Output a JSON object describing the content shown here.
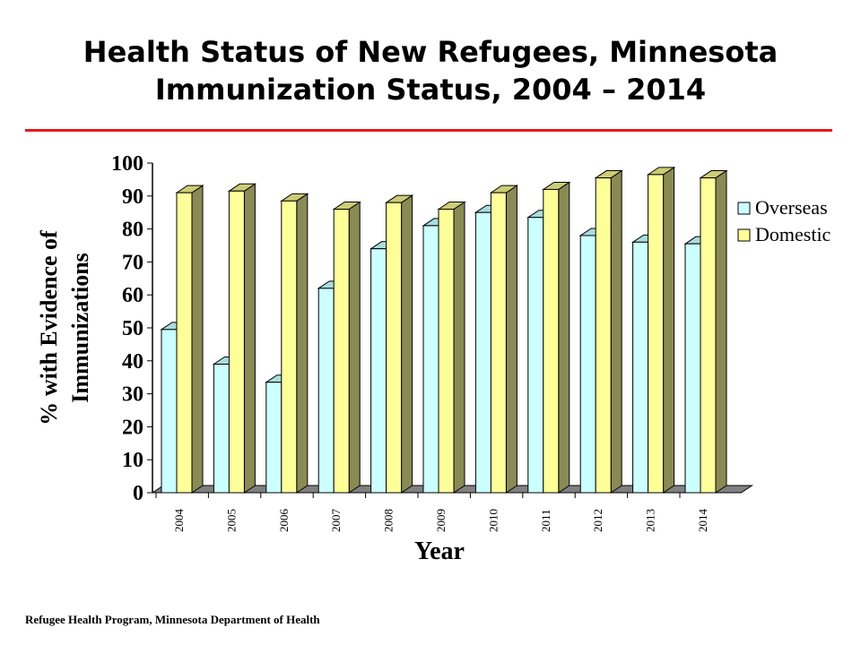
{
  "title_line1": "Health Status of New Refugees, Minnesota",
  "title_line2": "Immunization Status, 2004 – 2014",
  "footer": "Refugee Health Program, Minnesota Department of Health",
  "chart_data": {
    "type": "bar",
    "categories": [
      "2004",
      "2005",
      "2006",
      "2007",
      "2008",
      "2009",
      "2010",
      "2011",
      "2012",
      "2013",
      "2014"
    ],
    "series": [
      {
        "name": "Overseas",
        "values": [
          49.5,
          39,
          33.5,
          62,
          74,
          81,
          85,
          83.5,
          78,
          76,
          75.5
        ],
        "color": "#ccffff"
      },
      {
        "name": "Domestic",
        "values": [
          91,
          91.5,
          88.5,
          86,
          88,
          86,
          91,
          92,
          95.5,
          96.5,
          95.5
        ],
        "color": "#ffff99"
      }
    ],
    "ylim": [
      0,
      100
    ],
    "yticks": [
      "0",
      "10",
      "20",
      "30",
      "40",
      "50",
      "60",
      "70",
      "80",
      "90",
      "100"
    ],
    "xlabel": "Year",
    "ylabel_line1": "% with Evidence of",
    "ylabel_line2": "Immunizations",
    "legend_position": "right",
    "grid": false,
    "style": "3d-bar"
  }
}
